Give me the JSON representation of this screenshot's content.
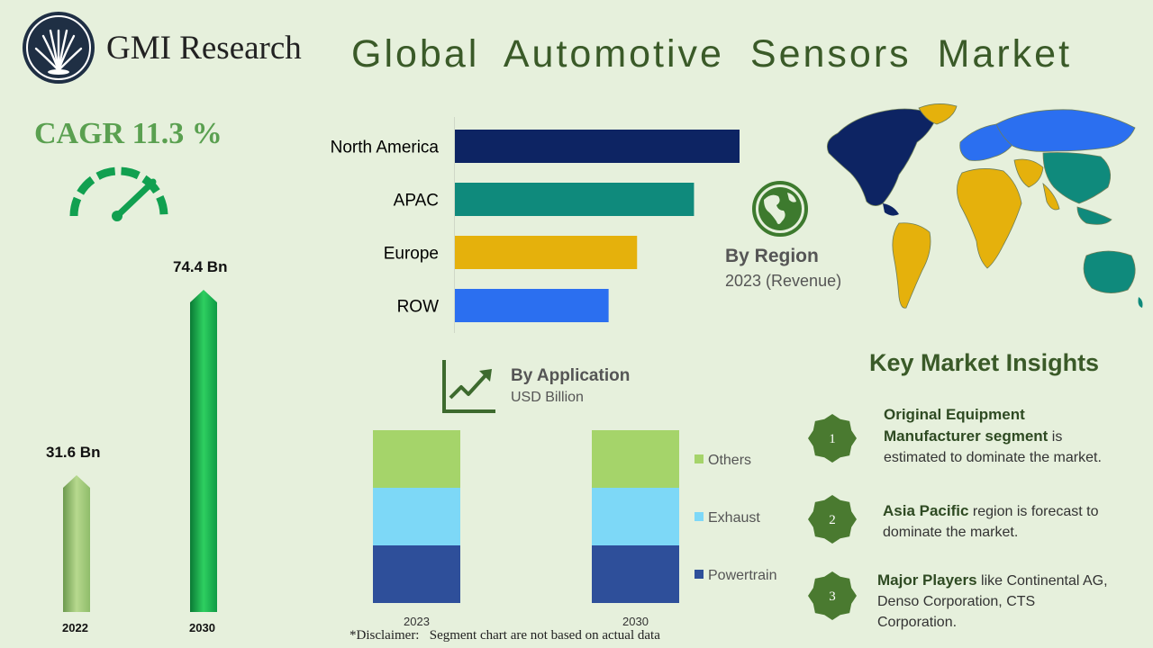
{
  "brand": {
    "name": "GMI Research"
  },
  "title": "Global Automotive Sensors Market",
  "cagr": {
    "label": "CAGR 11.3 %"
  },
  "growth": {
    "bars": [
      {
        "year": "2022",
        "value_label": "31.6 Bn",
        "value": 31.6
      },
      {
        "year": "2030",
        "value_label": "74.4 Bn",
        "value": 74.4
      }
    ]
  },
  "region_panel": {
    "title": "By Region",
    "subtitle": "2023 (Revenue)"
  },
  "application_panel": {
    "title": "By Application",
    "subtitle": "USD Billion"
  },
  "chart_data": [
    {
      "type": "bar",
      "orientation": "horizontal",
      "categories": [
        "North America",
        "APAC",
        "Europe",
        "ROW"
      ],
      "values": [
        100,
        84,
        64,
        54
      ],
      "colors": [
        "#0d2463",
        "#0f8a7c",
        "#e5b10c",
        "#2b6ff0"
      ],
      "title": "By Region",
      "subtitle": "2023 (Revenue)"
    },
    {
      "type": "bar",
      "stacked": true,
      "categories": [
        "2023",
        "2030"
      ],
      "series": [
        {
          "name": "Powertrain",
          "values": [
            1,
            1
          ],
          "color": "#2e4f9a"
        },
        {
          "name": "Exhaust",
          "values": [
            1,
            1
          ],
          "color": "#7dd8f7"
        },
        {
          "name": "Others",
          "values": [
            1,
            1
          ],
          "color": "#a5d46a"
        }
      ],
      "title": "By Application",
      "subtitle": "USD Billion",
      "legend": "right"
    }
  ],
  "disclaimer": "*Disclaimer:   Segment chart are not based on actual data",
  "insights": {
    "title": "Key Market Insights",
    "items": [
      {
        "number": "1",
        "bold": "Original Equipment Manufacturer  segment",
        "text": " is estimated to dominate the market."
      },
      {
        "number": "2",
        "bold": "Asia Pacific",
        "text": " region is forecast to dominate the market."
      },
      {
        "number": "3",
        "bold": "Major Players",
        "text": " like Continental AG, Denso Corporation, CTS Corporation."
      }
    ]
  },
  "colors": {
    "title_green": "#3a5a28",
    "cagr_green": "#5aa050",
    "gauge_green": "#11a050",
    "background": "#e6f0dc",
    "badge_green": "#4a7a30"
  }
}
